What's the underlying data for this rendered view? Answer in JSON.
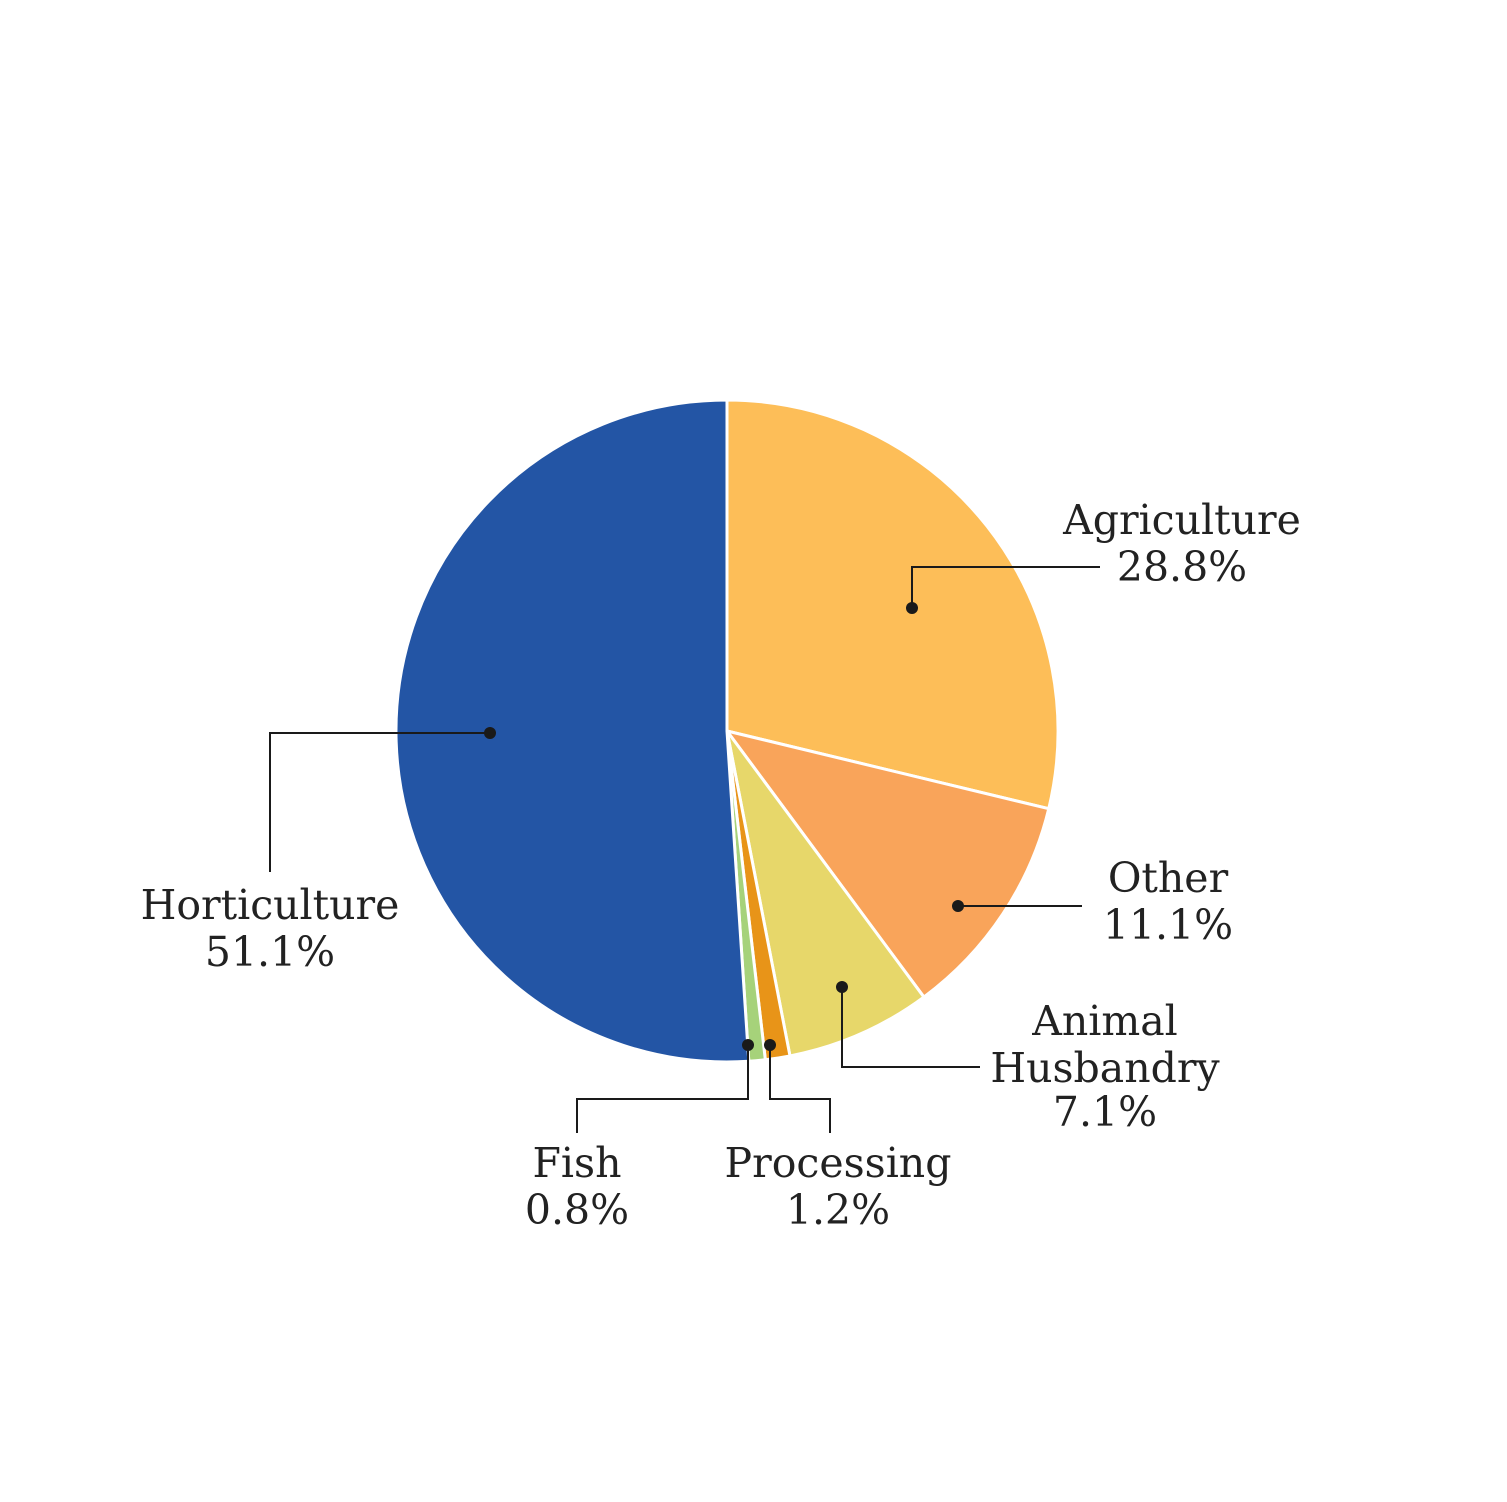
{
  "chart_data": {
    "type": "pie",
    "title": "",
    "start_angle_deg": 0,
    "direction": "clockwise",
    "slices": [
      {
        "name": "Agriculture",
        "value": 28.8,
        "label": "28.8%",
        "color": "#FDBE58"
      },
      {
        "name": "Other",
        "value": 11.1,
        "label": "11.1%",
        "color": "#F9A45A"
      },
      {
        "name": "Animal Husbandry",
        "value": 7.1,
        "label": "7.1%",
        "color": "#E7D76A"
      },
      {
        "name": "Processing",
        "value": 1.2,
        "label": "1.2%",
        "color": "#E89418"
      },
      {
        "name": "Fish",
        "value": 0.8,
        "label": "0.8%",
        "color": "#A6D27A"
      },
      {
        "name": "Horticulture",
        "value": 51.1,
        "label": "51.1%",
        "color": "#2355A5"
      }
    ]
  }
}
